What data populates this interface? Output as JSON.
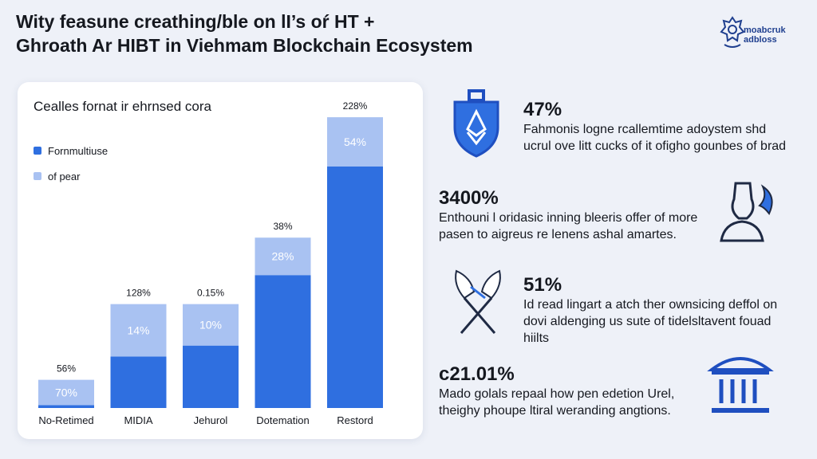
{
  "title": {
    "line1": "Wity feasune creathing/ble on lI’s oŕ HT +",
    "line2": "Ghroath Ar HIBT in Viehmam Blockchain Ecosystem"
  },
  "logo": {
    "line1": "moabcruk",
    "line2": "adbloss"
  },
  "chart_heading": "Cealles fornat ir ehrnsed cora",
  "legend": [
    "Fornmultiuse",
    "of pear"
  ],
  "chart_data": {
    "type": "bar",
    "stacked": true,
    "categories": [
      "No-Retimed",
      "MIDIA",
      "Jehurol",
      "Dotemation",
      "Restord"
    ],
    "series": [
      {
        "name": "Fornmultiuse",
        "values": [
          7,
          128,
          155,
          330,
          600
        ],
        "color": "#2f6fe0"
      },
      {
        "name": "of pear",
        "values": [
          63,
          130,
          103,
          93,
          122
        ],
        "color": "#a9c2f2"
      }
    ],
    "inner_labels": [
      "70%",
      "14%",
      "10%",
      "28%",
      "54%"
    ],
    "top_labels": [
      "56%",
      "128%",
      "0.15%",
      "38%",
      "228%"
    ],
    "ylim": [
      0,
      740
    ],
    "grid": false
  },
  "stats": [
    {
      "value": "47%",
      "lines": [
        "Fahmonis logne rcallemtime adoystem shd",
        "ucrul ove litt cucks of it ofigho gounbes of brad"
      ],
      "icon": "ethereum-shield-icon"
    },
    {
      "value": "3400%",
      "lines": [
        "Enthouni l oridasic inning bleeris offer of more",
        "pasen to aigreus re lenens ashal amartes."
      ],
      "icon": "user-profile-icon"
    },
    {
      "value": "51%",
      "lines": [
        "Id read lingart a atch ther ownsicing deffol on",
        "dovi aldenging us sute of tidelsltavent fouad",
        "hiilts"
      ],
      "icon": "crossed-feathers-icon"
    },
    {
      "value": "c21.01%",
      "lines": [
        "Mado golals repaal how pen edetion Urel,",
        "theighy phoupe ltiral weranding angtions."
      ],
      "icon": "bank-building-icon"
    }
  ],
  "colors": {
    "accent": "#2f6fe0",
    "light": "#a9c2f2",
    "icon": "#1f4fc0",
    "background": "#eef1f8"
  }
}
